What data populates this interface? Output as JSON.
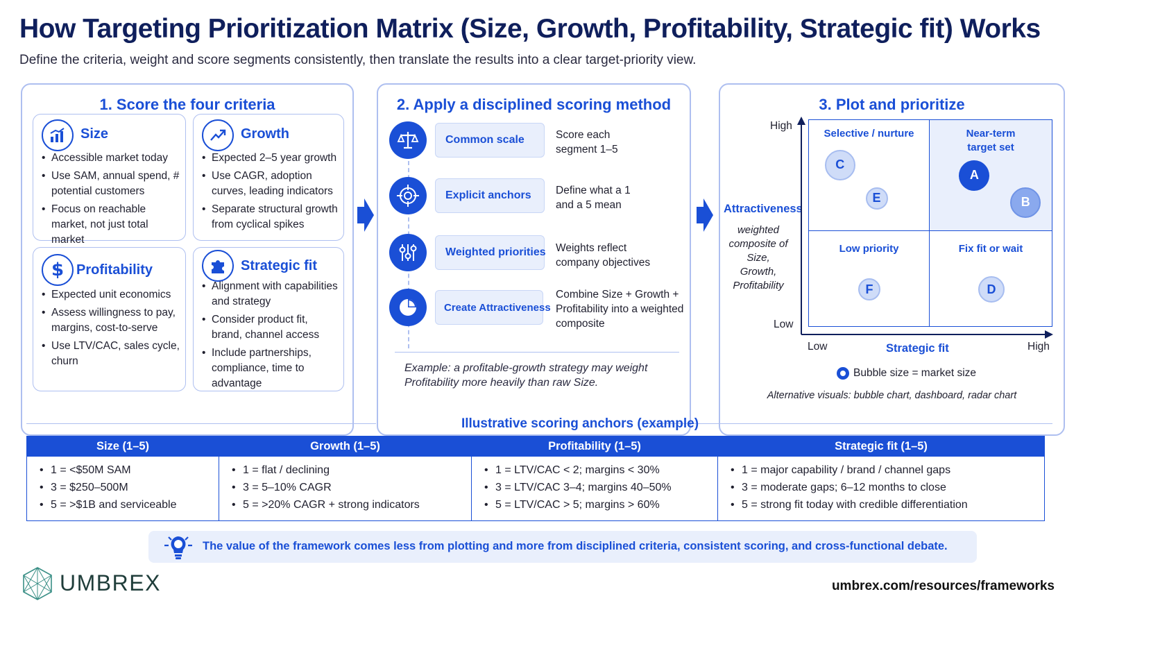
{
  "header": {
    "title": "How Targeting Prioritization Matrix (Size, Growth, Profitability, Strategic fit) Works",
    "subtitle": "Define the criteria, weight and score segments consistently, then translate the results into a clear target-priority view."
  },
  "panel1": {
    "title": "1. Score the four criteria",
    "cards": [
      {
        "title": "Size",
        "icon": "bar-chart-icon",
        "items": [
          "Accessible market today",
          "Use SAM, annual spend, # potential customers",
          "Focus on reachable market, not just total market"
        ]
      },
      {
        "title": "Growth",
        "icon": "trend-up-icon",
        "items": [
          "Expected 2–5 year growth",
          "Use CAGR, adoption curves, leading indicators",
          "Separate structural growth from cyclical spikes"
        ]
      },
      {
        "title": "Profitability",
        "icon": "dollar-icon",
        "items": [
          "Expected unit economics",
          "Assess willingness to pay, margins, cost-to-serve",
          "Use LTV/CAC, sales cycle, churn"
        ]
      },
      {
        "title": "Strategic fit",
        "icon": "puzzle-icon",
        "items": [
          "Alignment with capabilities and strategy",
          "Consider product fit, brand, channel access",
          "Include partnerships, compliance, time to advantage"
        ]
      }
    ]
  },
  "panel2": {
    "title": "2. Apply a disciplined scoring method",
    "steps": [
      {
        "label": "Common scale",
        "desc": "Score each segment 1–5",
        "icon": "scale-icon"
      },
      {
        "label": "Explicit anchors",
        "desc": "Define what a 1 and a 5 mean",
        "icon": "target-icon"
      },
      {
        "label": "Weighted priorities",
        "desc": "Weights reflect company objectives",
        "icon": "sliders-icon"
      },
      {
        "label": "Create Attractiveness",
        "desc": "Combine Size + Growth + Profitability into a weighted composite",
        "icon": "pie-icon"
      }
    ],
    "example": "Example: a profitable-growth strategy may weight Profitability more heavily than raw Size."
  },
  "panel3": {
    "title": "3. Plot and prioritize",
    "y_axis_title": "Attractiveness",
    "y_axis_note": "weighted composite of Size, Growth, Profitability",
    "y_high": "High",
    "y_low": "Low",
    "x_axis_title": "Strategic fit",
    "x_low": "Low",
    "x_high": "High",
    "quadrants": {
      "top_left": "Selective / nurture",
      "top_right": "Near-term target set",
      "bottom_left": "Low priority",
      "bottom_right": "Fix fit or wait"
    },
    "legend": "Bubble size = market size",
    "alt_visuals": "Alternative visuals: bubble chart, dashboard, radar chart",
    "bubbles": [
      {
        "label": "A",
        "fit": 0.68,
        "attr": 0.73,
        "style": "dark",
        "size": "large"
      },
      {
        "label": "B",
        "fit": 0.89,
        "attr": 0.6,
        "style": "mid",
        "size": "large"
      },
      {
        "label": "C",
        "fit": 0.13,
        "attr": 0.78,
        "style": "light",
        "size": "large"
      },
      {
        "label": "D",
        "fit": 0.75,
        "attr": 0.18,
        "style": "light",
        "size": "medium"
      },
      {
        "label": "E",
        "fit": 0.28,
        "attr": 0.62,
        "style": "light",
        "size": "small"
      },
      {
        "label": "F",
        "fit": 0.25,
        "attr": 0.18,
        "style": "light",
        "size": "small"
      }
    ]
  },
  "anchors": {
    "title": "Illustrative scoring anchors (example)",
    "columns": [
      {
        "header": "Size (1–5)",
        "items": [
          "1 = <$50M SAM",
          "3 = $250–500M",
          "5 = >$1B and serviceable"
        ]
      },
      {
        "header": "Growth (1–5)",
        "items": [
          "1 = flat / declining",
          "3 = 5–10% CAGR",
          "5 = >20% CAGR + strong indicators"
        ]
      },
      {
        "header": "Profitability (1–5)",
        "items": [
          "1 = LTV/CAC < 2; margins < 30%",
          "3 = LTV/CAC 3–4; margins 40–50%",
          "5 = LTV/CAC > 5; margins > 60%"
        ]
      },
      {
        "header": "Strategic fit (1–5)",
        "items": [
          "1 = major capability / brand / channel gaps",
          "3 = moderate gaps; 6–12 months to close",
          "5 = strong fit today with credible differentiation"
        ]
      }
    ]
  },
  "banner": {
    "text": "The value of the framework comes less from plotting and more from disciplined criteria, consistent scoring, and cross-functional debate.",
    "icon": "lightbulb-icon"
  },
  "footer": {
    "brand": "UMBREX",
    "url": "umbrex.com/resources/frameworks"
  },
  "colors": {
    "accent": "#1a4fd6",
    "border": "#aebff0",
    "title": "#0f1f5c",
    "tint": "#e9effc"
  }
}
